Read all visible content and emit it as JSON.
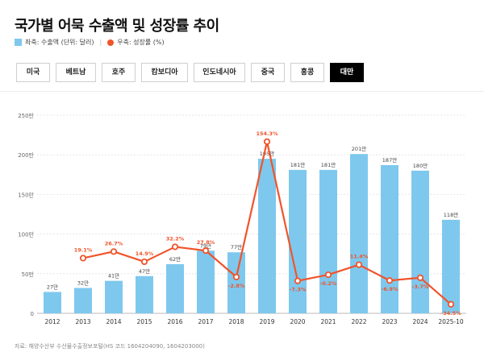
{
  "title": "국가별 어묵 수출액 및 성장률 추이",
  "legend": {
    "bar_label": "좌축: 수출액 (단위: 달러)",
    "line_label": "우축: 성장률 (%)",
    "bar_color": "#7ec8ee",
    "line_color": "#f0542b"
  },
  "tabs": [
    {
      "label": "미국",
      "active": false
    },
    {
      "label": "베트남",
      "active": false
    },
    {
      "label": "호주",
      "active": false
    },
    {
      "label": "캄보디아",
      "active": false
    },
    {
      "label": "인도네시아",
      "active": false
    },
    {
      "label": "중국",
      "active": false
    },
    {
      "label": "홍콩",
      "active": false
    },
    {
      "label": "대만",
      "active": true
    }
  ],
  "source": "자료: 해양수산부 수산물수출정보포털(HS 코드 1604204090, 1604203000)",
  "chart_data": {
    "type": "bar+line",
    "categories": [
      "2012",
      "2013",
      "2014",
      "2015",
      "2016",
      "2017",
      "2018",
      "2019",
      "2020",
      "2021",
      "2022",
      "2023",
      "2024",
      "2025-10"
    ],
    "bar_series": {
      "name": "수출액",
      "values": [
        27,
        32,
        41,
        47,
        62,
        79,
        77,
        195,
        181,
        181,
        201,
        187,
        180,
        118
      ],
      "labels": [
        "27만",
        "32만",
        "41만",
        "47만",
        "62만",
        "79만",
        "77만",
        "195만",
        "181만",
        "181만",
        "201만",
        "187만",
        "180만",
        "118만"
      ]
    },
    "line_series": {
      "name": "성장률",
      "values": [
        null,
        19.1,
        26.7,
        14.9,
        32.2,
        27.8,
        -2.8,
        154.3,
        -7.3,
        -0.2,
        11.4,
        -6.9,
        -3.7,
        -34.5
      ],
      "labels": [
        "",
        "19.1%",
        "26.7%",
        "14.9%",
        "32.2%",
        "27.8%",
        "-2.8%",
        "154.3%",
        "-7.3%",
        "-0.2%",
        "11.4%",
        "-6.9%",
        "-3.7%",
        "-34.5%"
      ]
    },
    "y_left": {
      "min": 0,
      "max": 250,
      "ticks": [
        0,
        50,
        100,
        150,
        200,
        250
      ],
      "tick_labels": [
        "0",
        "50만",
        "100만",
        "150만",
        "200만",
        "250만"
      ]
    },
    "y_right": {
      "min": -45,
      "max": 185
    },
    "grid": true
  }
}
